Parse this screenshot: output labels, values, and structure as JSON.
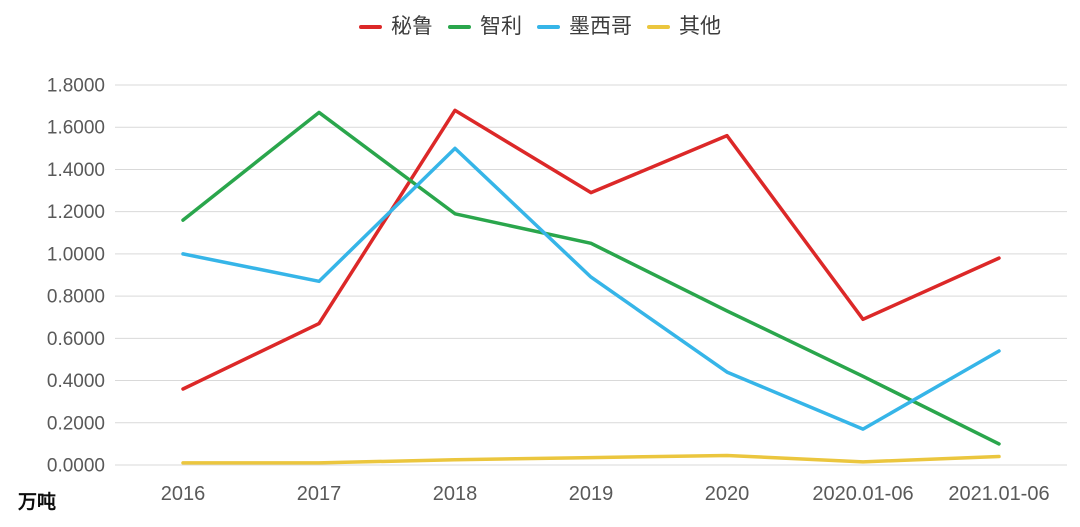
{
  "chart_data": {
    "type": "line",
    "title": "",
    "unit_label": "万吨",
    "categories": [
      "2016",
      "2017",
      "2018",
      "2019",
      "2020",
      "2020.01-06",
      "2021.01-06"
    ],
    "series": [
      {
        "key": "peru",
        "name": "秘鲁",
        "color": "#dc2828",
        "values": [
          0.36,
          0.67,
          1.68,
          1.29,
          1.56,
          0.69,
          0.98
        ]
      },
      {
        "key": "chile",
        "name": "智利",
        "color": "#2aa64c",
        "values": [
          1.16,
          1.67,
          1.19,
          1.05,
          0.73,
          0.42,
          0.1
        ]
      },
      {
        "key": "mexico",
        "name": "墨西哥",
        "color": "#36b5e8",
        "values": [
          1.0,
          0.87,
          1.5,
          0.89,
          0.44,
          0.17,
          0.54
        ]
      },
      {
        "key": "other",
        "name": "其他",
        "color": "#ebc63e",
        "values": [
          0.01,
          0.01,
          0.025,
          0.035,
          0.045,
          0.015,
          0.04
        ]
      }
    ],
    "ylim": [
      0,
      1.8
    ],
    "ytick_step": 0.2,
    "ytick_decimals": 4,
    "grid": "horizontal",
    "gridline_color": "#d9d9d9",
    "axis_label_color": "#595959",
    "legend_position": "top",
    "background_color": "#ffffff"
  }
}
